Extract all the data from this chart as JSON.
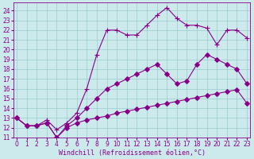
{
  "xlabel": "Windchill (Refroidissement éolien,°C)",
  "bg_color": "#cce9ec",
  "line_color": "#880088",
  "series": [
    {
      "x": [
        0,
        1,
        2,
        3,
        4,
        5,
        6,
        7,
        8,
        9,
        10,
        11,
        12,
        13,
        14,
        15,
        16,
        17,
        18,
        19,
        20,
        21,
        22,
        23
      ],
      "y": [
        13.0,
        12.2,
        12.2,
        12.8,
        11.8,
        12.5,
        13.5,
        16.0,
        19.5,
        22.0,
        22.0,
        21.5,
        21.5,
        22.5,
        23.5,
        24.3,
        23.2,
        22.5,
        22.5,
        22.2,
        20.5,
        22.0,
        22.0,
        21.2
      ],
      "marker": "+",
      "ms": 5
    },
    {
      "x": [
        0,
        1,
        2,
        3,
        4,
        5,
        6,
        7,
        8,
        9,
        10,
        11,
        12,
        13,
        14,
        15,
        16,
        17,
        18,
        19,
        20,
        21,
        22,
        23
      ],
      "y": [
        13.0,
        12.2,
        12.2,
        12.5,
        11.0,
        12.2,
        13.0,
        14.0,
        15.0,
        16.0,
        16.5,
        17.0,
        17.5,
        18.0,
        18.5,
        17.5,
        16.5,
        16.8,
        18.5,
        19.5,
        19.0,
        18.5,
        18.0,
        16.5
      ],
      "marker": "D",
      "ms": 3
    },
    {
      "x": [
        0,
        1,
        2,
        3,
        4,
        5,
        6,
        7,
        8,
        9,
        10,
        11,
        12,
        13,
        14,
        15,
        16,
        17,
        18,
        19,
        20,
        21,
        22,
        23
      ],
      "y": [
        13.0,
        12.2,
        12.2,
        12.5,
        11.0,
        12.0,
        12.5,
        12.8,
        13.0,
        13.2,
        13.5,
        13.7,
        13.9,
        14.1,
        14.3,
        14.5,
        14.7,
        14.9,
        15.1,
        15.3,
        15.5,
        15.7,
        15.9,
        14.5
      ],
      "marker": "D",
      "ms": 3
    }
  ],
  "xlim": [
    -0.3,
    23.3
  ],
  "ylim": [
    11.0,
    24.8
  ],
  "yticks": [
    11,
    12,
    13,
    14,
    15,
    16,
    17,
    18,
    19,
    20,
    21,
    22,
    23,
    24
  ],
  "xticks": [
    0,
    1,
    2,
    3,
    4,
    5,
    6,
    7,
    8,
    9,
    10,
    11,
    12,
    13,
    14,
    15,
    16,
    17,
    18,
    19,
    20,
    21,
    22,
    23
  ],
  "grid_color": "#99cccc",
  "tick_fontsize": 5.5,
  "label_fontsize": 6.0
}
